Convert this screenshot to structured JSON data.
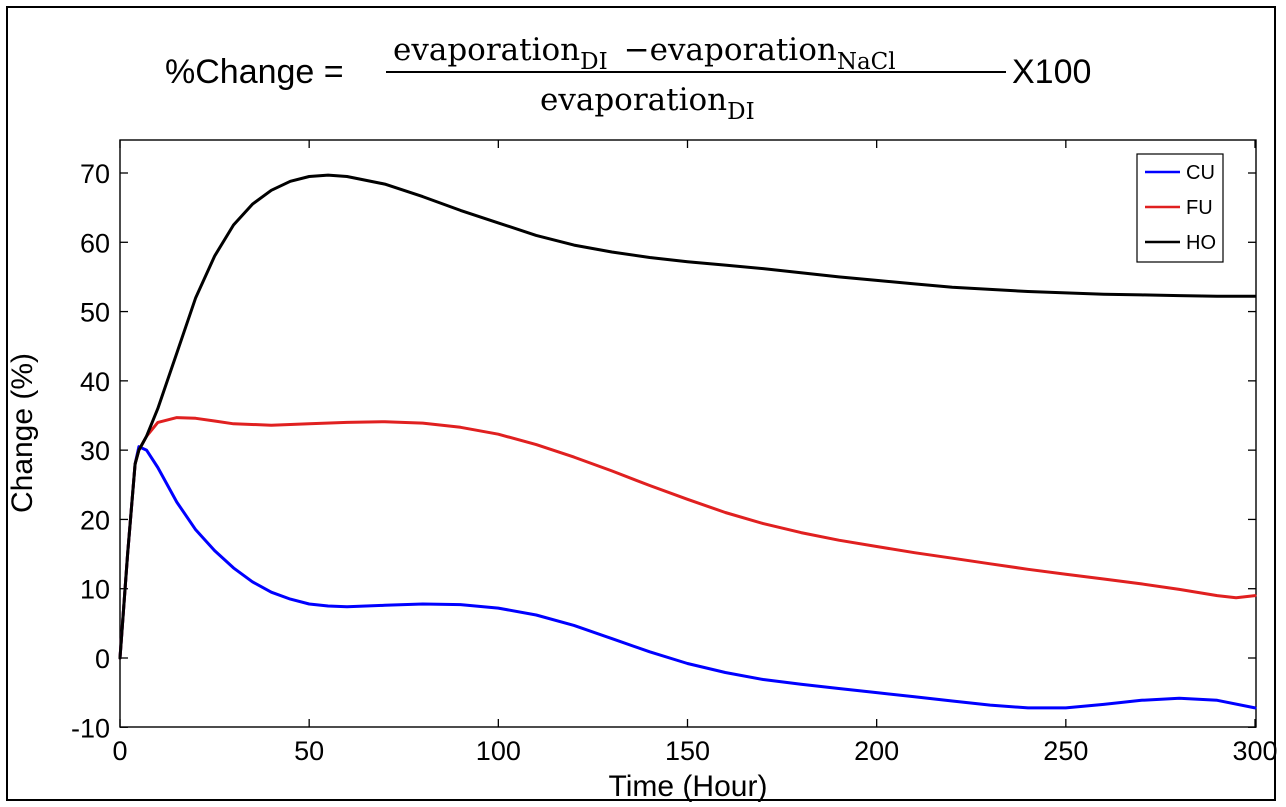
{
  "formula": {
    "lhs": "%Change =",
    "num_main_1": "evaporation",
    "num_sub_1": "DI",
    "num_op": "−",
    "num_main_2": "evaporation",
    "num_sub_2": "NaCl",
    "den_main": "evaporation",
    "den_sub": "DI",
    "rhs": "X100"
  },
  "chart_data": {
    "type": "line",
    "title": "",
    "xlabel": "Time (Hour)",
    "ylabel": "Change (%)",
    "xlim": [
      0,
      300
    ],
    "ylim": [
      -10,
      75
    ],
    "xticks": [
      0,
      50,
      100,
      150,
      200,
      250,
      300
    ],
    "yticks": [
      -10,
      0,
      10,
      20,
      30,
      40,
      50,
      60,
      70
    ],
    "grid": false,
    "legend_position": "top-right",
    "series": [
      {
        "name": "CU",
        "color": "#0000ff",
        "x": [
          0,
          2,
          4,
          5,
          7,
          10,
          15,
          20,
          25,
          30,
          35,
          40,
          45,
          50,
          55,
          60,
          70,
          80,
          90,
          100,
          110,
          120,
          130,
          140,
          150,
          160,
          170,
          180,
          190,
          200,
          210,
          220,
          230,
          240,
          250,
          260,
          270,
          280,
          290,
          300
        ],
        "y": [
          0,
          15,
          28,
          30.5,
          30,
          27.5,
          22.5,
          18.5,
          15.5,
          13,
          11,
          9.5,
          8.5,
          7.8,
          7.5,
          7.4,
          7.6,
          7.8,
          7.7,
          7.2,
          6.2,
          4.7,
          2.8,
          0.9,
          -0.8,
          -2.1,
          -3.1,
          -3.8,
          -4.4,
          -5,
          -5.6,
          -6.2,
          -6.8,
          -7.2,
          -7.2,
          -6.7,
          -6.1,
          -5.8,
          -6.1,
          -7.2
        ]
      },
      {
        "name": "FU",
        "color": "#e02020",
        "x": [
          0,
          2,
          4,
          5,
          7,
          10,
          15,
          20,
          25,
          30,
          40,
          50,
          60,
          70,
          80,
          90,
          100,
          110,
          120,
          130,
          140,
          150,
          160,
          170,
          180,
          190,
          200,
          210,
          220,
          230,
          240,
          250,
          260,
          270,
          280,
          290,
          295,
          300
        ],
        "y": [
          0,
          15,
          28,
          30,
          32,
          34,
          34.7,
          34.6,
          34.2,
          33.8,
          33.6,
          33.8,
          34,
          34.1,
          33.9,
          33.3,
          32.3,
          30.8,
          29,
          27,
          24.9,
          22.9,
          21,
          19.4,
          18.1,
          17,
          16.1,
          15.2,
          14.4,
          13.6,
          12.8,
          12.1,
          11.4,
          10.7,
          9.9,
          9,
          8.7,
          9
        ]
      },
      {
        "name": "HO",
        "color": "#000000",
        "x": [
          0,
          2,
          4,
          5,
          7,
          10,
          15,
          20,
          25,
          30,
          35,
          40,
          45,
          50,
          55,
          60,
          70,
          80,
          90,
          100,
          110,
          120,
          130,
          140,
          150,
          160,
          170,
          180,
          190,
          200,
          210,
          220,
          230,
          240,
          250,
          260,
          270,
          280,
          290,
          300
        ],
        "y": [
          0,
          15,
          28,
          30,
          32,
          36,
          44,
          52,
          58,
          62.5,
          65.5,
          67.5,
          68.8,
          69.5,
          69.7,
          69.5,
          68.4,
          66.6,
          64.6,
          62.8,
          61,
          59.6,
          58.6,
          57.8,
          57.2,
          56.7,
          56.2,
          55.6,
          55,
          54.5,
          54,
          53.5,
          53.2,
          52.9,
          52.7,
          52.5,
          52.4,
          52.3,
          52.2,
          52.2
        ]
      }
    ]
  }
}
